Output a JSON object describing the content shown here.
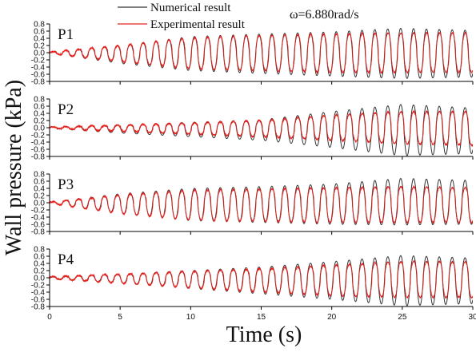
{
  "chart_data": {
    "type": "line",
    "xlabel": "Time (s)",
    "ylabel": "Wall pressure (kPa)",
    "annotation": "ω=6.880rad/s",
    "xlim": [
      0,
      30
    ],
    "ylim": [
      -0.8,
      0.8
    ],
    "xticks": [
      "0",
      "5",
      "10",
      "15",
      "20",
      "25",
      "30"
    ],
    "yticks": [
      "0.8",
      "0.6",
      "0.4",
      "0.2",
      "0.0",
      "-0.2",
      "-0.4",
      "-0.6",
      "-0.8"
    ],
    "frequency_hz": 1.095,
    "legend": [
      {
        "name": "Numerical result",
        "color": "#333333"
      },
      {
        "name": "Experimental result",
        "color": "#e8201c"
      }
    ],
    "panels": [
      {
        "label": "P1",
        "series": [
          {
            "name": "Numerical result",
            "color": "#333333",
            "envelope": {
              "t": [
                0,
                5,
                10,
                15,
                20,
                25,
                30
              ],
              "amp_pos": [
                0.02,
                0.2,
                0.45,
                0.52,
                0.58,
                0.68,
                0.62
              ],
              "amp_neg": [
                0.02,
                0.3,
                0.5,
                0.58,
                0.65,
                0.72,
                0.68
              ]
            }
          },
          {
            "name": "Experimental result",
            "color": "#e8201c",
            "envelope": {
              "t": [
                0,
                5,
                10,
                15,
                20,
                25,
                30
              ],
              "amp_pos": [
                0.02,
                0.2,
                0.42,
                0.48,
                0.52,
                0.55,
                0.55
              ],
              "amp_neg": [
                0.02,
                0.25,
                0.45,
                0.5,
                0.55,
                0.55,
                0.55
              ]
            }
          }
        ]
      },
      {
        "label": "P2",
        "series": [
          {
            "name": "Numerical result",
            "color": "#333333",
            "envelope": {
              "t": [
                0,
                5,
                10,
                15,
                20,
                25,
                30
              ],
              "amp_pos": [
                0.02,
                0.08,
                0.15,
                0.22,
                0.45,
                0.65,
                0.55
              ],
              "amp_neg": [
                0.02,
                0.15,
                0.25,
                0.35,
                0.55,
                0.78,
                0.72
              ]
            }
          },
          {
            "name": "Experimental result",
            "color": "#e8201c",
            "envelope": {
              "t": [
                0,
                5,
                10,
                15,
                20,
                25,
                30
              ],
              "amp_pos": [
                0.02,
                0.07,
                0.13,
                0.2,
                0.35,
                0.45,
                0.45
              ],
              "amp_neg": [
                0.02,
                0.1,
                0.18,
                0.25,
                0.35,
                0.45,
                0.5
              ]
            }
          }
        ]
      },
      {
        "label": "P3",
        "series": [
          {
            "name": "Numerical result",
            "color": "#333333",
            "envelope": {
              "t": [
                0,
                5,
                10,
                15,
                20,
                25,
                30
              ],
              "amp_pos": [
                0.02,
                0.25,
                0.4,
                0.45,
                0.52,
                0.68,
                0.62
              ],
              "amp_neg": [
                0.02,
                0.3,
                0.5,
                0.55,
                0.6,
                0.62,
                0.6
              ]
            }
          },
          {
            "name": "Experimental result",
            "color": "#e8201c",
            "envelope": {
              "t": [
                0,
                5,
                10,
                15,
                20,
                25,
                30
              ],
              "amp_pos": [
                0.02,
                0.22,
                0.35,
                0.38,
                0.42,
                0.45,
                0.42
              ],
              "amp_neg": [
                0.02,
                0.3,
                0.48,
                0.52,
                0.55,
                0.55,
                0.55
              ]
            }
          }
        ]
      },
      {
        "label": "P4",
        "series": [
          {
            "name": "Numerical result",
            "color": "#333333",
            "envelope": {
              "t": [
                0,
                5,
                10,
                15,
                20,
                25,
                30
              ],
              "amp_pos": [
                0.02,
                0.1,
                0.2,
                0.3,
                0.45,
                0.62,
                0.55
              ],
              "amp_neg": [
                0.02,
                0.15,
                0.3,
                0.45,
                0.6,
                0.78,
                0.72
              ]
            }
          },
          {
            "name": "Experimental result",
            "color": "#e8201c",
            "envelope": {
              "t": [
                0,
                5,
                10,
                15,
                20,
                25,
                30
              ],
              "amp_pos": [
                0.03,
                0.1,
                0.18,
                0.25,
                0.35,
                0.45,
                0.45
              ],
              "amp_neg": [
                0.03,
                0.15,
                0.28,
                0.4,
                0.5,
                0.55,
                0.55
              ]
            }
          }
        ]
      }
    ]
  }
}
